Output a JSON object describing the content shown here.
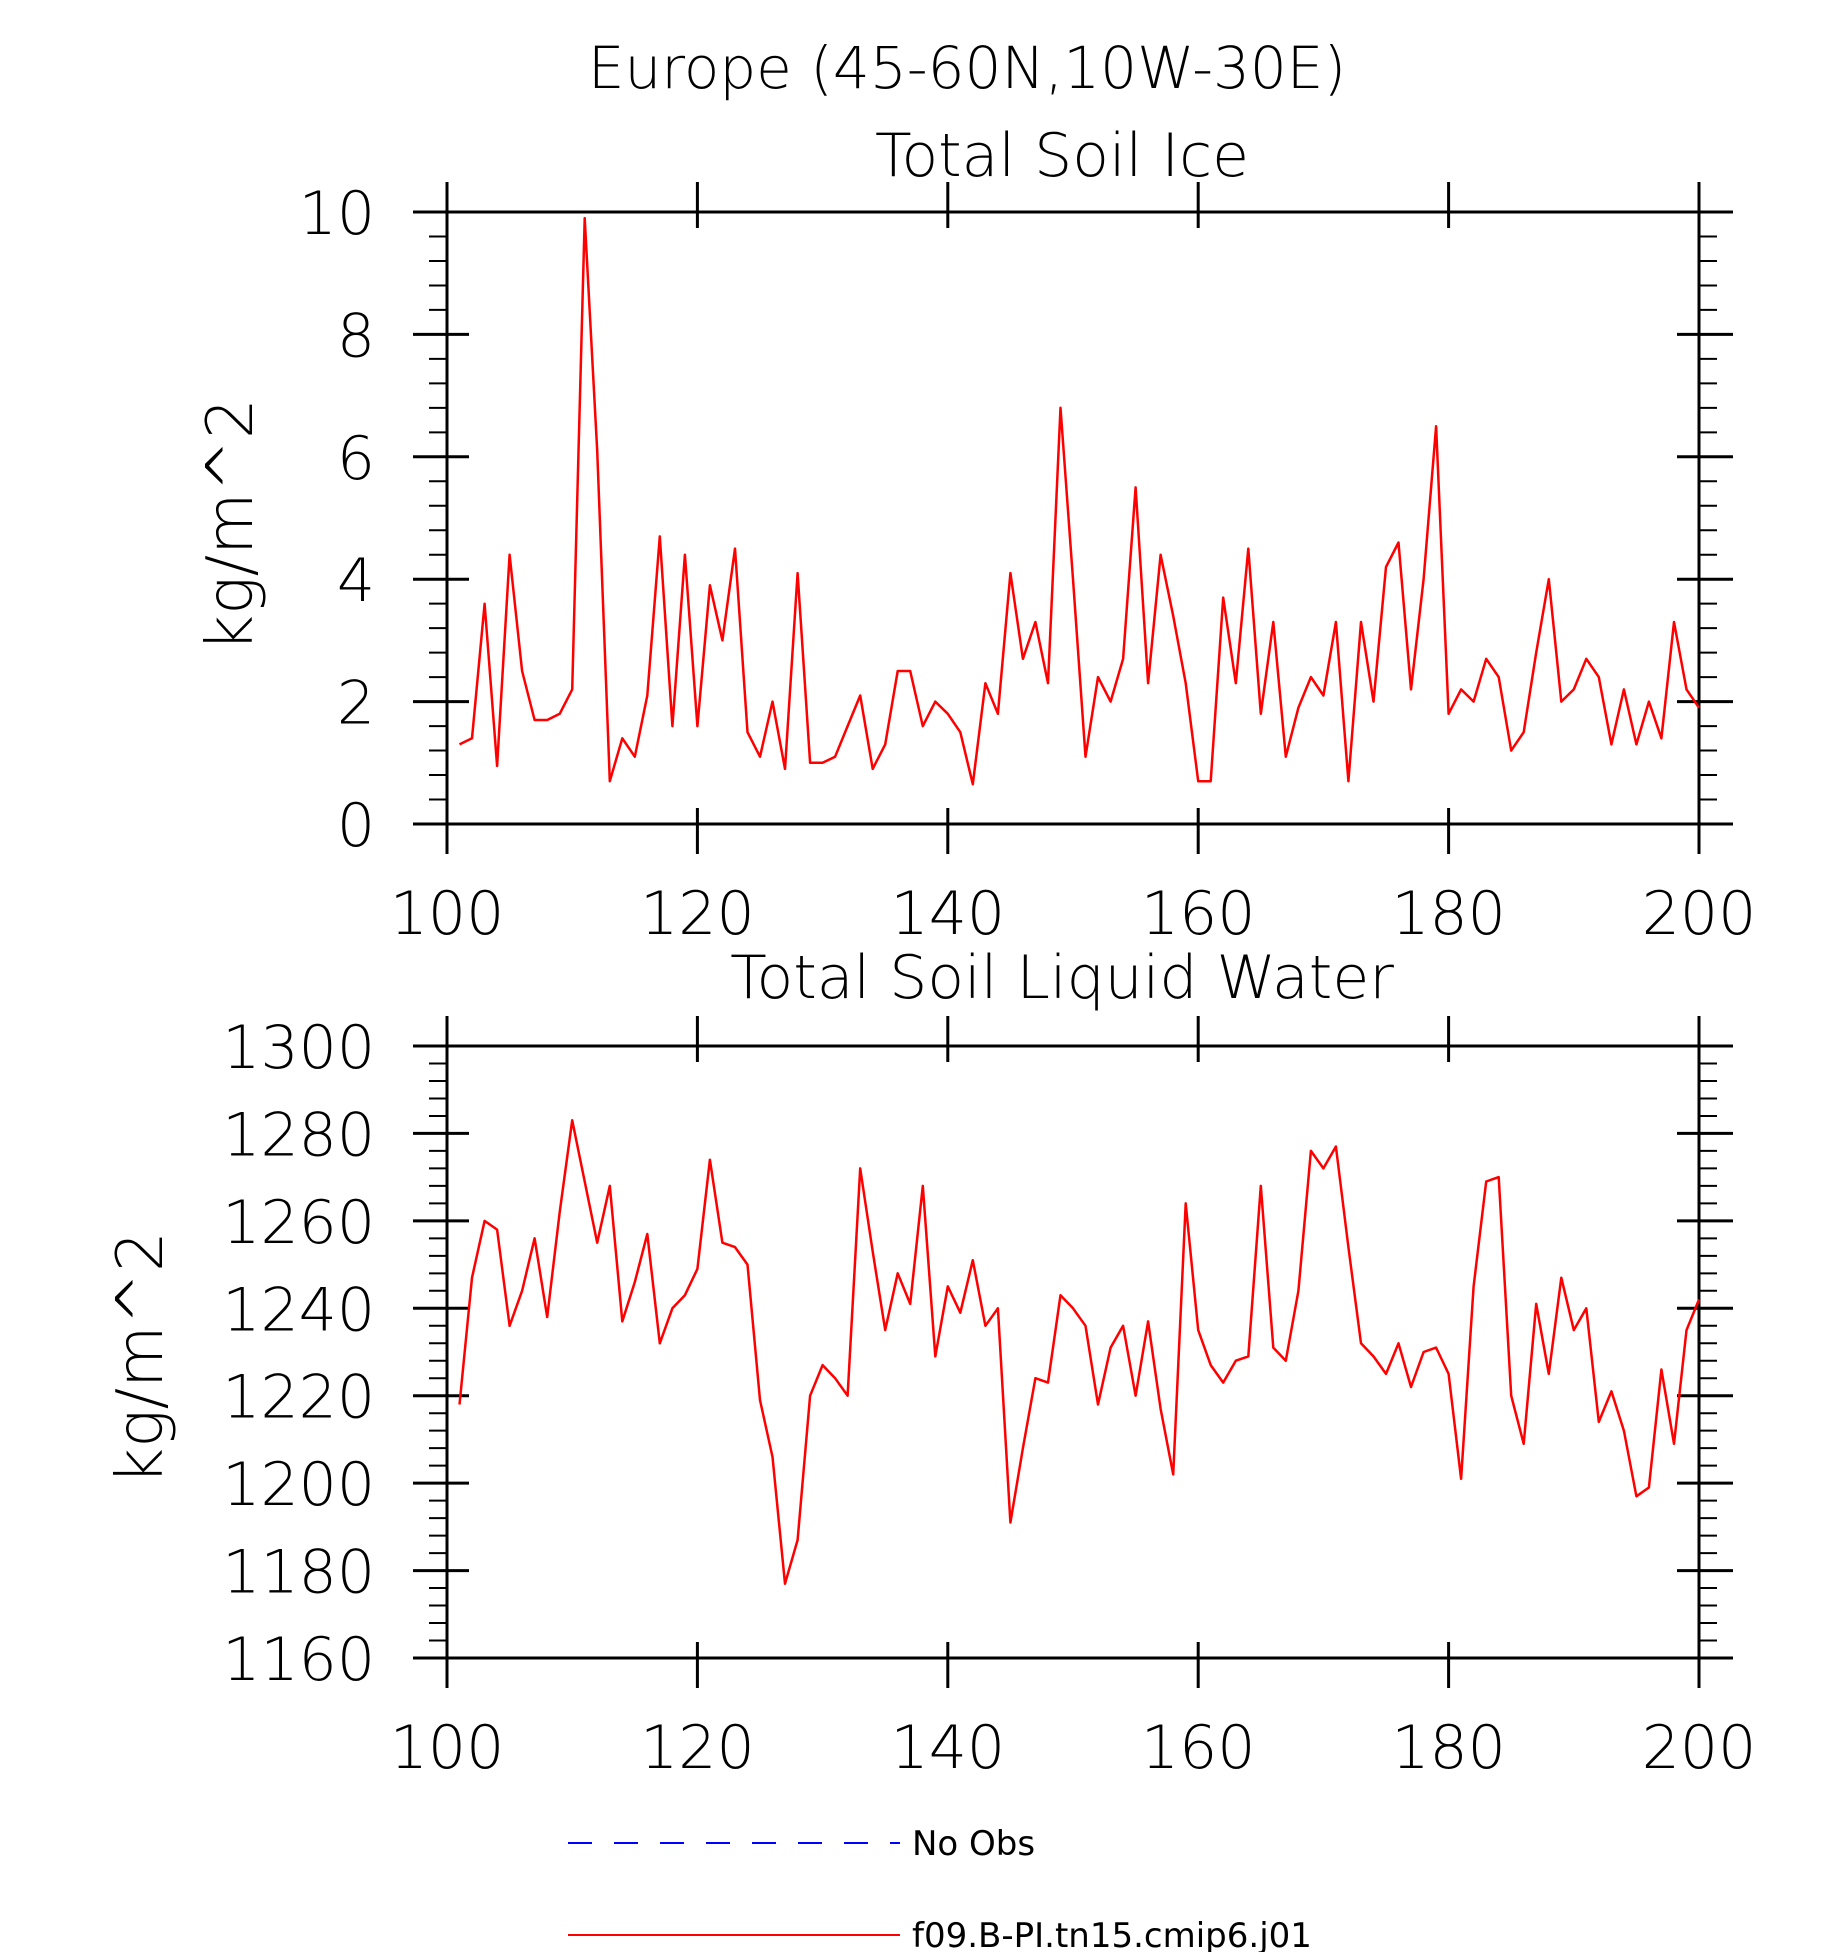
{
  "figure": {
    "title_line1": "Europe (45-60N,10W-30E)"
  },
  "chart_data": [
    {
      "type": "line",
      "title": "Total Soil Ice",
      "xlabel": "",
      "ylabel": "kg/m^2",
      "xlim": [
        100,
        200
      ],
      "ylim": [
        0,
        10
      ],
      "xticks": [
        "100",
        "120",
        "140",
        "160",
        "180",
        "200"
      ],
      "yticks": [
        "0",
        "2",
        "4",
        "6",
        "8",
        "10"
      ],
      "grid": false,
      "series": [
        {
          "name": "f09.B-PI.tn15.cmip6.j01",
          "color": "#ff0000",
          "x_start": 101,
          "values": [
            1.3,
            1.4,
            3.6,
            0.95,
            4.4,
            2.5,
            1.7,
            1.7,
            1.8,
            2.2,
            9.9,
            6.1,
            0.7,
            1.4,
            1.1,
            2.1,
            4.7,
            1.6,
            4.4,
            1.6,
            3.9,
            3.0,
            4.5,
            1.5,
            1.1,
            2.0,
            0.9,
            4.1,
            1.0,
            1.0,
            1.1,
            1.6,
            2.1,
            0.9,
            1.3,
            2.5,
            2.5,
            1.6,
            2.0,
            1.8,
            1.5,
            0.65,
            2.3,
            1.8,
            4.1,
            2.7,
            3.3,
            2.3,
            6.8,
            4.0,
            1.1,
            2.4,
            2.0,
            2.7,
            5.5,
            2.3,
            4.4,
            3.4,
            2.3,
            0.7,
            0.7,
            3.7,
            2.3,
            4.5,
            1.8,
            3.3,
            1.1,
            1.9,
            2.4,
            2.1,
            3.3,
            0.7,
            3.3,
            2.0,
            4.2,
            4.6,
            2.2,
            4.0,
            6.5,
            1.8,
            2.2,
            2.0,
            2.7,
            2.4,
            1.2,
            1.5,
            2.8,
            4.0,
            2.0,
            2.2,
            2.7,
            2.4,
            1.3,
            2.2,
            1.3,
            2.0,
            1.4,
            3.3,
            2.2,
            1.9
          ]
        },
        {
          "name": "No Obs",
          "color": "#0000ff",
          "values": []
        }
      ]
    },
    {
      "type": "line",
      "title": "Total Soil Liquid Water",
      "xlabel": "",
      "ylabel": "kg/m^2",
      "xlim": [
        100,
        200
      ],
      "ylim": [
        1160,
        1300
      ],
      "xticks": [
        "100",
        "120",
        "140",
        "160",
        "180",
        "200"
      ],
      "yticks": [
        "1160",
        "1180",
        "1200",
        "1220",
        "1240",
        "1260",
        "1280",
        "1300"
      ],
      "grid": false,
      "series": [
        {
          "name": "f09.B-PI.tn15.cmip6.j01",
          "color": "#ff0000",
          "x_start": 101,
          "values": [
            1218,
            1247,
            1260,
            1258,
            1236,
            1244,
            1256,
            1238,
            1262,
            1283,
            1269,
            1255,
            1268,
            1237,
            1246,
            1257,
            1232,
            1240,
            1243,
            1249,
            1274,
            1255,
            1254,
            1250,
            1219,
            1206,
            1177,
            1187,
            1220,
            1227,
            1224,
            1220,
            1272,
            1253,
            1235,
            1248,
            1241,
            1268,
            1229,
            1245,
            1239,
            1251,
            1236,
            1240,
            1191,
            1208,
            1224,
            1223,
            1243,
            1240,
            1236,
            1218,
            1231,
            1236,
            1220,
            1237,
            1217,
            1202,
            1264,
            1235,
            1227,
            1223,
            1228,
            1229,
            1268,
            1231,
            1228,
            1244,
            1276,
            1272,
            1277,
            1254,
            1232,
            1229,
            1225,
            1232,
            1222,
            1230,
            1231,
            1225,
            1201,
            1245,
            1269,
            1270,
            1220,
            1209,
            1241,
            1225,
            1247,
            1235,
            1240,
            1214,
            1221,
            1212,
            1197,
            1199,
            1226,
            1209,
            1235,
            1242
          ]
        }
      ]
    }
  ],
  "legend": {
    "placement": "bottom-center",
    "items": [
      {
        "label": "No Obs",
        "color": "#0000ff",
        "style": "dashed"
      },
      {
        "label": "f09.B-PI.tn15.cmip6.j01",
        "color": "#ff0000",
        "style": "solid"
      }
    ]
  }
}
